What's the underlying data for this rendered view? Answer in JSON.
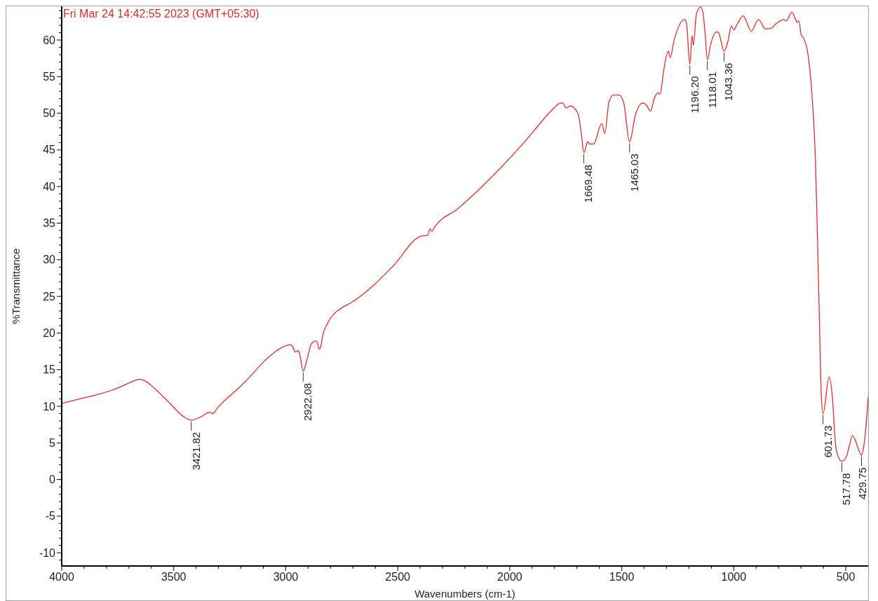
{
  "chart_data": {
    "type": "line",
    "title": "Fri Mar 24 14:42:55 2023 (GMT+05:30)",
    "xlabel": "Wavenumbers (cm-1)",
    "ylabel": "%Transmittance",
    "color": "#e02b2b",
    "x": [
      4000,
      3909,
      3853,
      3775,
      3674,
      3657,
      3630,
      3584,
      3517,
      3461,
      3421.82,
      3383,
      3338,
      3326,
      3304,
      3203,
      3158,
      3091,
      3013,
      2979,
      2968,
      2957,
      2948,
      2940,
      2922.08,
      2906,
      2884,
      2865,
      2859,
      2850,
      2845,
      2833,
      2812,
      2752,
      2710,
      2605,
      2522,
      2398,
      2382,
      2367,
      2356,
      2348,
      2335,
      2231,
      2137,
      2033,
      1928,
      1876,
      1813,
      1772,
      1762,
      1749,
      1731,
      1715,
      1694,
      1678,
      1669.48,
      1652,
      1642,
      1626,
      1589,
      1576,
      1558,
      1538,
      1512,
      1491,
      1465.03,
      1439,
      1407,
      1392,
      1371,
      1355,
      1339,
      1329,
      1313,
      1292,
      1284,
      1266,
      1219,
      1211,
      1196.2,
      1186,
      1180,
      1167,
      1148,
      1138,
      1127,
      1118.01,
      1104,
      1078,
      1068,
      1043.36,
      1026,
      1011,
      1000,
      984,
      958,
      922,
      890,
      859,
      833,
      812,
      776,
      766,
      741,
      724,
      718,
      710,
      698,
      689,
      668,
      651,
      635,
      627,
      617,
      609,
      601.73,
      574,
      560,
      546,
      531,
      517.78,
      499,
      484,
      470,
      458,
      442,
      429.75,
      421,
      411,
      400
    ],
    "values": [
      10.4,
      11.1,
      11.5,
      12.2,
      13.5,
      13.7,
      13.5,
      12.4,
      10.4,
      8.7,
      8.1,
      8.5,
      9.2,
      9.0,
      9.8,
      12.7,
      14.1,
      16.3,
      18.1,
      18.4,
      18.1,
      17.4,
      17.6,
      17.4,
      14.8,
      16.3,
      18.6,
      18.9,
      18.7,
      17.8,
      18.0,
      19.9,
      21.4,
      23.4,
      24.1,
      26.6,
      29.1,
      33.2,
      33.3,
      33.3,
      34.2,
      33.9,
      34.5,
      37.0,
      39.6,
      42.8,
      46.3,
      48.2,
      50.4,
      51.4,
      51.4,
      50.7,
      51.0,
      50.8,
      49.8,
      46.6,
      44.6,
      46.1,
      45.8,
      45.8,
      48.6,
      47.2,
      51.4,
      52.5,
      52.5,
      51.4,
      46.1,
      49.8,
      51.4,
      51.2,
      50.3,
      52.0,
      52.8,
      52.6,
      55.8,
      58.5,
      57.6,
      60.0,
      62.8,
      62.3,
      56.7,
      60.6,
      59.3,
      63.5,
      64.5,
      63.8,
      60.6,
      57.3,
      59.3,
      61.1,
      61.0,
      58.5,
      59.8,
      61.9,
      61.4,
      62.2,
      63.3,
      61.2,
      62.8,
      61.5,
      61.6,
      62.2,
      62.8,
      62.6,
      63.8,
      62.8,
      62.4,
      62.6,
      60.6,
      60.3,
      57.9,
      52.6,
      43.1,
      33.9,
      20.8,
      11.3,
      9.0,
      14.0,
      11.3,
      4.9,
      2.9,
      2.5,
      3.0,
      4.6,
      6.0,
      5.4,
      4.0,
      3.3,
      4.3,
      6.8,
      11.3
    ],
    "xlim": [
      4000,
      400
    ],
    "ylim": [
      -11.8,
      64.6
    ],
    "xticks": [
      4000,
      {
        "value": 3900,
        "label": null
      },
      {
        "value": 3800,
        "label": null
      },
      {
        "value": 3700,
        "label": null
      },
      {
        "value": 3600,
        "label": null
      },
      3500,
      {
        "value": 3400,
        "label": null
      },
      {
        "value": 3300,
        "label": null
      },
      {
        "value": 3200,
        "label": null
      },
      {
        "value": 3100,
        "label": null
      },
      3000,
      {
        "value": 2900,
        "label": null
      },
      {
        "value": 2800,
        "label": null
      },
      {
        "value": 2700,
        "label": null
      },
      {
        "value": 2600,
        "label": null
      },
      2500,
      {
        "value": 2400,
        "label": null
      },
      {
        "value": 2300,
        "label": null
      },
      {
        "value": 2200,
        "label": null
      },
      {
        "value": 2100,
        "label": null
      },
      2000,
      {
        "value": 1900,
        "label": null
      },
      {
        "value": 1800,
        "label": null
      },
      {
        "value": 1700,
        "label": null
      },
      {
        "value": 1600,
        "label": null
      },
      1500,
      {
        "value": 1400,
        "label": null
      },
      {
        "value": 1300,
        "label": null
      },
      {
        "value": 1200,
        "label": null
      },
      {
        "value": 1100,
        "label": null
      },
      1000,
      {
        "value": 900,
        "label": null
      },
      {
        "value": 800,
        "label": null
      },
      {
        "value": 700,
        "label": null
      },
      {
        "value": 600,
        "label": null
      },
      500
    ],
    "yticks": [
      {
        "value": -11,
        "label": null
      },
      -10,
      {
        "value": -9,
        "label": null
      },
      {
        "value": -8,
        "label": null
      },
      {
        "value": -7,
        "label": null
      },
      {
        "value": -6,
        "label": null
      },
      -5,
      {
        "value": -4,
        "label": null
      },
      {
        "value": -3,
        "label": null
      },
      {
        "value": -2,
        "label": null
      },
      {
        "value": -1,
        "label": null
      },
      0,
      {
        "value": 1,
        "label": null
      },
      {
        "value": 2,
        "label": null
      },
      {
        "value": 3,
        "label": null
      },
      {
        "value": 4,
        "label": null
      },
      5,
      {
        "value": 6,
        "label": null
      },
      {
        "value": 7,
        "label": null
      },
      {
        "value": 8,
        "label": null
      },
      {
        "value": 9,
        "label": null
      },
      10,
      {
        "value": 11,
        "label": null
      },
      {
        "value": 12,
        "label": null
      },
      {
        "value": 13,
        "label": null
      },
      {
        "value": 14,
        "label": null
      },
      15,
      {
        "value": 16,
        "label": null
      },
      {
        "value": 17,
        "label": null
      },
      {
        "value": 18,
        "label": null
      },
      {
        "value": 19,
        "label": null
      },
      20,
      {
        "value": 21,
        "label": null
      },
      {
        "value": 22,
        "label": null
      },
      {
        "value": 23,
        "label": null
      },
      {
        "value": 24,
        "label": null
      },
      25,
      {
        "value": 26,
        "label": null
      },
      {
        "value": 27,
        "label": null
      },
      {
        "value": 28,
        "label": null
      },
      {
        "value": 29,
        "label": null
      },
      30,
      {
        "value": 31,
        "label": null
      },
      {
        "value": 32,
        "label": null
      },
      {
        "value": 33,
        "label": null
      },
      {
        "value": 34,
        "label": null
      },
      35,
      {
        "value": 36,
        "label": null
      },
      {
        "value": 37,
        "label": null
      },
      {
        "value": 38,
        "label": null
      },
      {
        "value": 39,
        "label": null
      },
      40,
      {
        "value": 41,
        "label": null
      },
      {
        "value": 42,
        "label": null
      },
      {
        "value": 43,
        "label": null
      },
      {
        "value": 44,
        "label": null
      },
      45,
      {
        "value": 46,
        "label": null
      },
      {
        "value": 47,
        "label": null
      },
      {
        "value": 48,
        "label": null
      },
      {
        "value": 49,
        "label": null
      },
      50,
      {
        "value": 51,
        "label": null
      },
      {
        "value": 52,
        "label": null
      },
      {
        "value": 53,
        "label": null
      },
      {
        "value": 54,
        "label": null
      },
      55,
      {
        "value": 56,
        "label": null
      },
      {
        "value": 57,
        "label": null
      },
      {
        "value": 58,
        "label": null
      },
      {
        "value": 59,
        "label": null
      },
      60,
      {
        "value": 61,
        "label": null
      },
      {
        "value": 62,
        "label": null
      },
      {
        "value": 63,
        "label": null
      },
      {
        "value": 64,
        "label": null
      }
    ],
    "annotations": [
      {
        "text": "3421.82",
        "x": 3421.82,
        "y": 8.1
      },
      {
        "text": "2922.08",
        "x": 2922.08,
        "y": 14.8
      },
      {
        "text": "1669.48",
        "x": 1669.48,
        "y": 44.6
      },
      {
        "text": "1465.03",
        "x": 1465.03,
        "y": 46.1
      },
      {
        "text": "1196.20",
        "x": 1196.2,
        "y": 56.7
      },
      {
        "text": "1118.01",
        "x": 1118.01,
        "y": 57.3
      },
      {
        "text": "1043.36",
        "x": 1043.36,
        "y": 58.5
      },
      {
        "text": "601.73",
        "x": 601.73,
        "y": 9.0
      },
      {
        "text": "517.78",
        "x": 517.78,
        "y": 2.5
      },
      {
        "text": "429.75",
        "x": 429.75,
        "y": 3.3
      }
    ]
  }
}
